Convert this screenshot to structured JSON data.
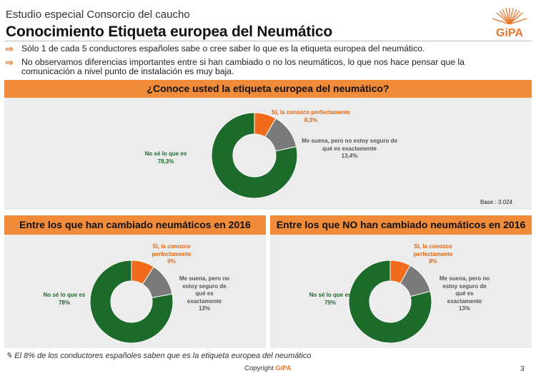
{
  "header": {
    "subtitle": "Estudio especial Consorcio del caucho",
    "title": "Conocimiento Etiqueta europea del Neumático",
    "logo_text": "GiPA"
  },
  "bullets": [
    "Sólo 1 de cada 5 conductores españoles sabe o cree saber lo que es la etiqueta europea del neumático.",
    "No observamos diferencias importantes entre si han cambiado o no los neumáticos, lo que nos hace pensar que la comunicación a nivel punto de instalación es muy baja."
  ],
  "colors": {
    "accent": "#f08b3a",
    "orange_slice": "#f26b1d",
    "grey_slice": "#7a7a7a",
    "green_slice": "#1d6b2a",
    "panel_bg": "#ececec"
  },
  "chart_data": [
    {
      "type": "pie",
      "title": "¿Conoce usted la etiqueta europea del neumático?",
      "slices": [
        {
          "label": "Sí, la conozco perfectamente",
          "value": 8.3,
          "value_label": "8,3%"
        },
        {
          "label": "Me suena, pero no estoy seguro de qué es exactamente",
          "value": 13.4,
          "value_label": "13,4%"
        },
        {
          "label": "No sé lo que es",
          "value": 78.3,
          "value_label": "78,3%"
        }
      ],
      "base": "Base : 3.024"
    },
    {
      "type": "pie",
      "title": "Entre los que han cambiado neumáticos en 2016",
      "slices": [
        {
          "label": "Sí, la conozco perfectamente",
          "value": 9,
          "value_label": "9%"
        },
        {
          "label": "Me suena, pero no estoy seguro de qué es exactamente",
          "value": 13,
          "value_label": "13%"
        },
        {
          "label": "No sé lo que es",
          "value": 78,
          "value_label": "78%"
        }
      ]
    },
    {
      "type": "pie",
      "title": "Entre los que NO han cambiado neumáticos en 2016",
      "slices": [
        {
          "label": "Sí, la conozco perfectamente",
          "value": 8,
          "value_label": "8%"
        },
        {
          "label": "Me suena, pero no estoy seguro de qué es exactamente",
          "value": 13,
          "value_label": "13%"
        },
        {
          "label": "No sé lo que es",
          "value": 79,
          "value_label": "79%"
        }
      ]
    }
  ],
  "footer": {
    "footnote": "El 8% de los conductores españoles saben que es la etiqueta europea del neumático",
    "copyright_prefix": "Copyright",
    "copyright_brand": "GiPA",
    "page_number": "3"
  }
}
